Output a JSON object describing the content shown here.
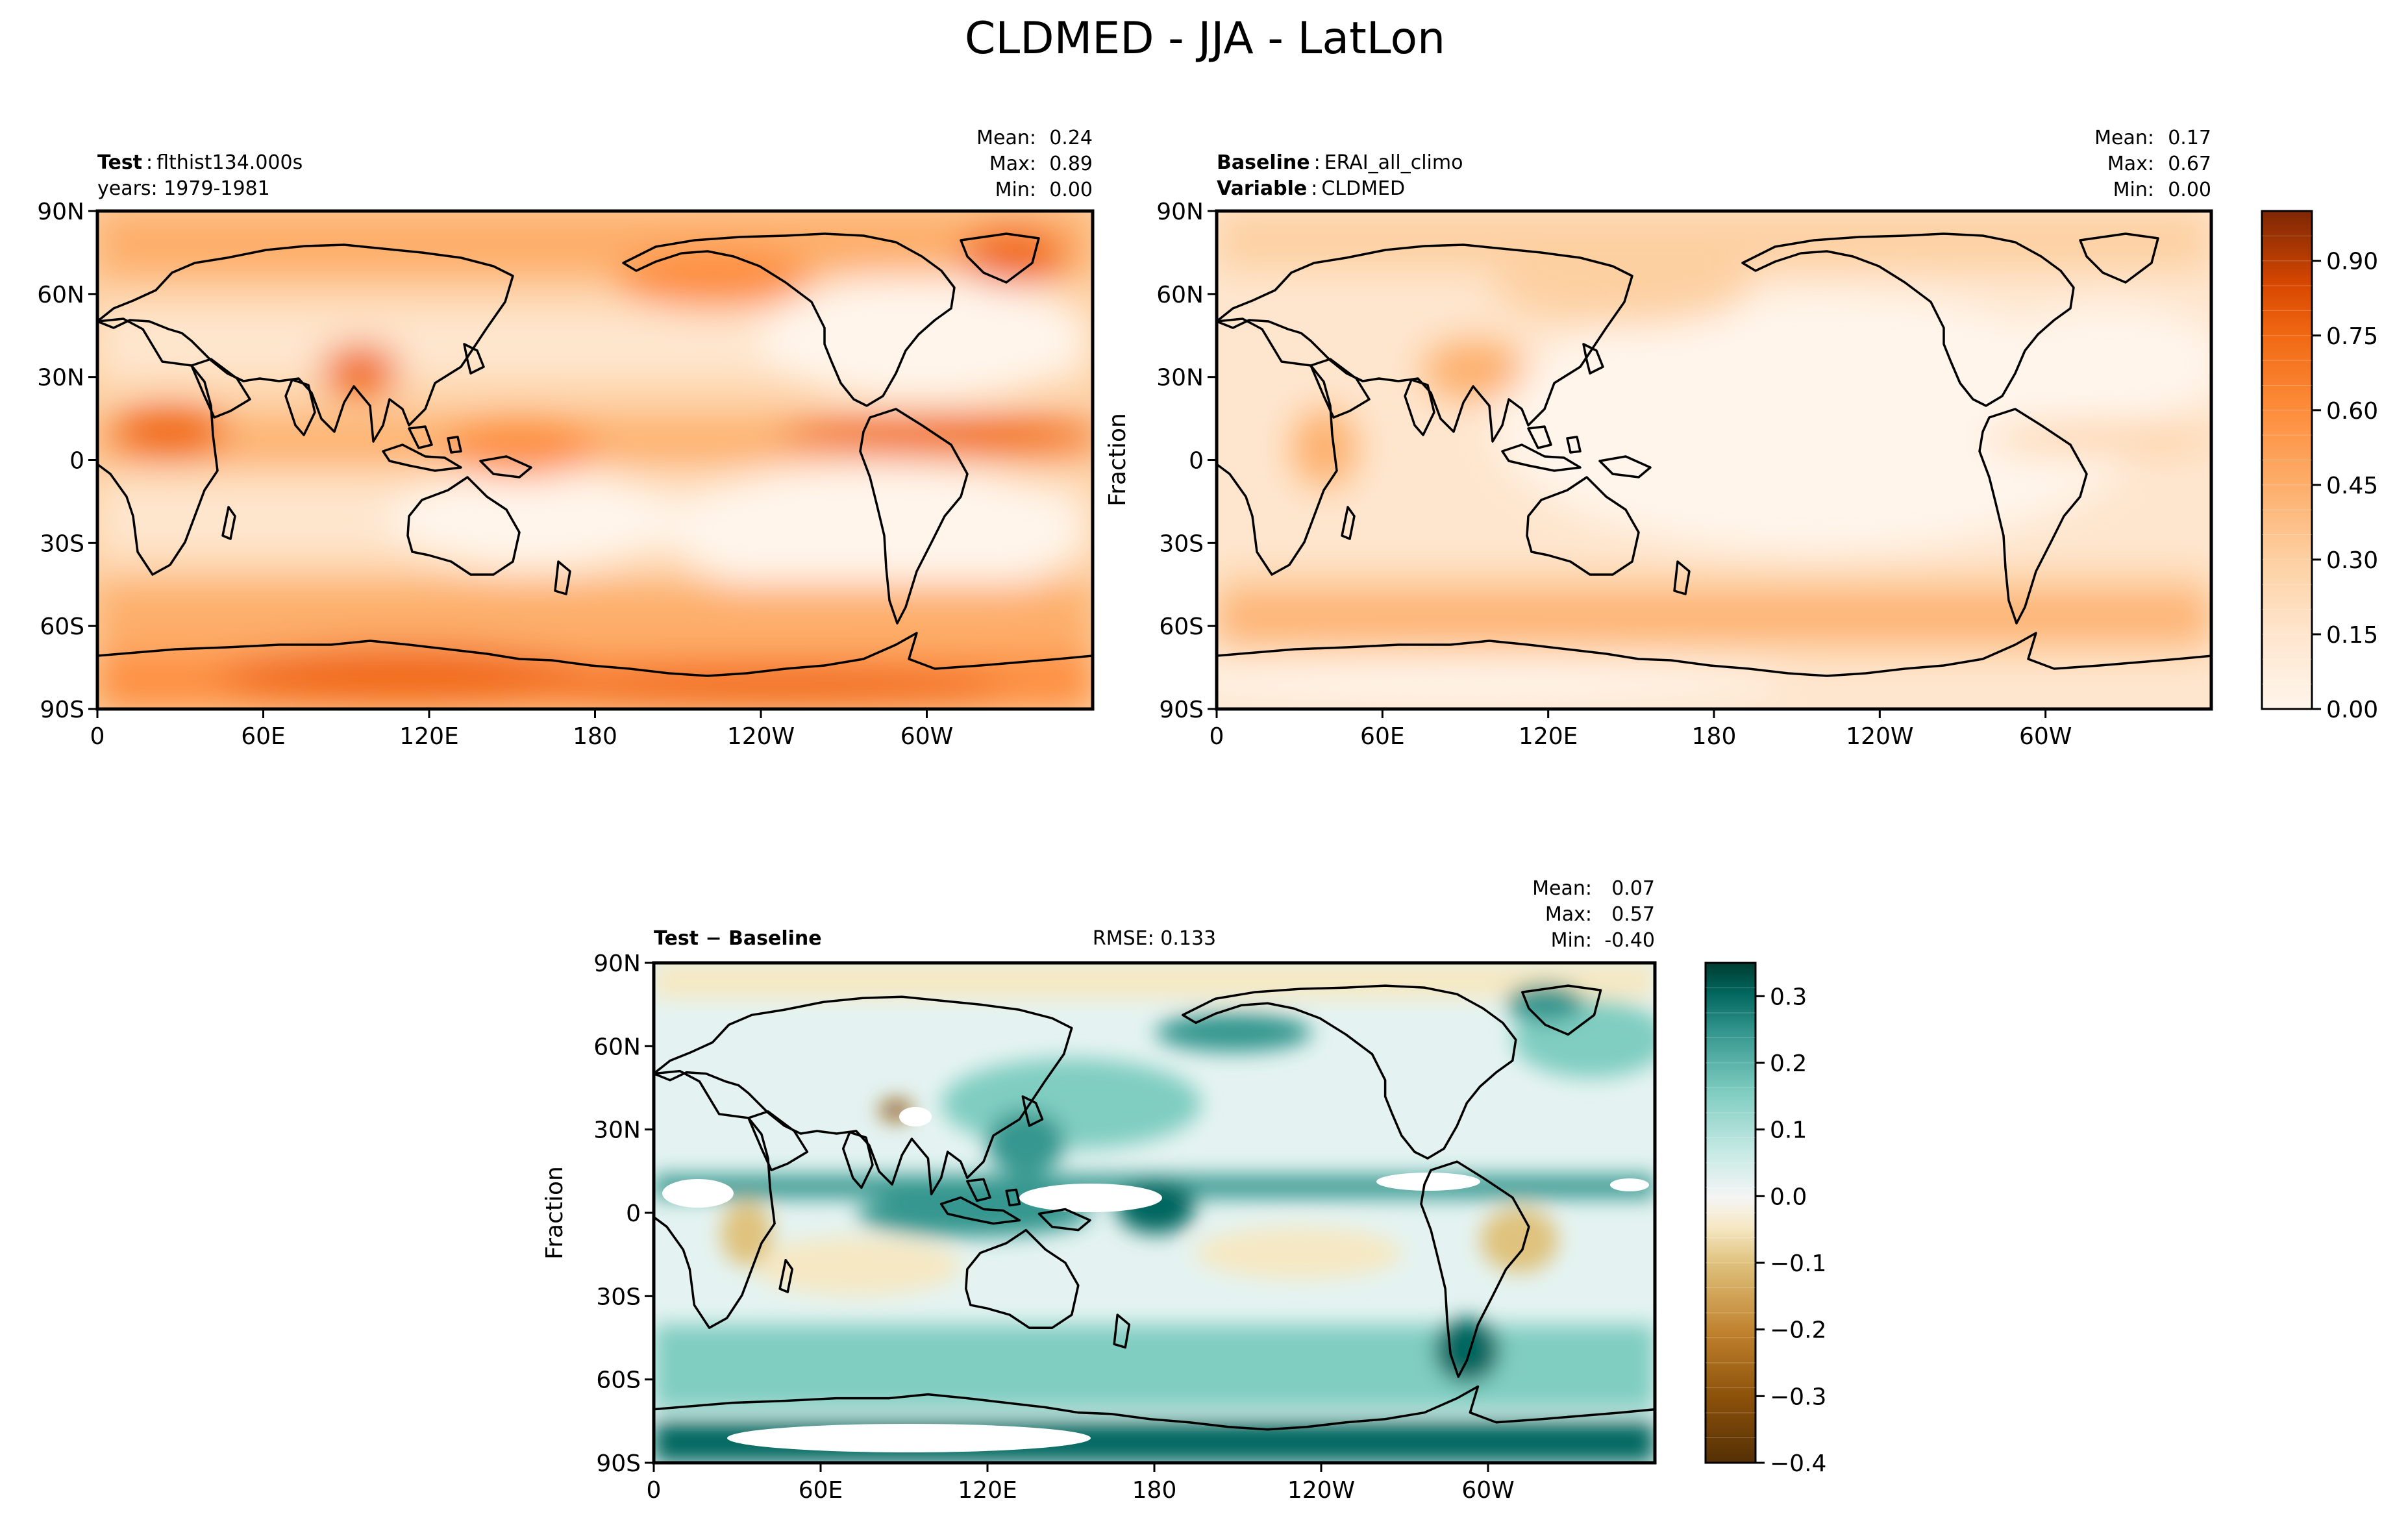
{
  "figure": {
    "title": "CLDMED - JJA - LatLon"
  },
  "axes": {
    "lat_ticks": [
      "90N",
      "60N",
      "30N",
      "0",
      "30S",
      "60S",
      "90S"
    ],
    "lon_ticks": [
      "0",
      "60E",
      "120E",
      "180",
      "120W",
      "60W"
    ]
  },
  "panels": {
    "test": {
      "label_bold": "Test",
      "label_value": "flthist134.000s",
      "line2": "years: 1979-1981",
      "stats": {
        "mean_label": "Mean:",
        "mean": "0.24",
        "max_label": "Max:",
        "max": "0.89",
        "min_label": "Min:",
        "min": "0.00"
      }
    },
    "baseline": {
      "label_bold": "Baseline",
      "label_value": "ERAI_all_climo",
      "line2_bold": "Variable",
      "line2_value": "CLDMED",
      "ylabel": "Fraction",
      "stats": {
        "mean_label": "Mean:",
        "mean": "0.17",
        "max_label": "Max:",
        "max": "0.67",
        "min_label": "Min:",
        "min": "0.00"
      }
    },
    "diff": {
      "label_bold": "Test − Baseline",
      "rmse": "RMSE: 0.133",
      "ylabel": "Fraction",
      "stats": {
        "mean_label": "Mean:",
        "mean": "0.07",
        "max_label": "Max:",
        "max": "0.57",
        "min_label": "Min:",
        "min": "-0.40"
      }
    }
  },
  "colorbars": {
    "seq": {
      "ticks": [
        "0.00",
        "0.15",
        "0.30",
        "0.45",
        "0.60",
        "0.75",
        "0.90"
      ],
      "range": [
        0,
        1
      ],
      "colors": [
        "#fff5eb",
        "#fee6ce",
        "#fdd0a2",
        "#fdae6b",
        "#fd8d3c",
        "#f16913",
        "#d94801",
        "#a63603",
        "#7f2704"
      ]
    },
    "div": {
      "ticks": [
        "−0.4",
        "−0.3",
        "−0.2",
        "−0.1",
        "0.0",
        "0.1",
        "0.2",
        "0.3"
      ],
      "range": [
        -0.4,
        0.35
      ],
      "colors": [
        "#543005",
        "#8c510a",
        "#bf812d",
        "#dfc27d",
        "#f6e8c3",
        "#f5f5f5",
        "#c7eae5",
        "#80cdc1",
        "#35978f",
        "#01665e",
        "#003c30"
      ]
    }
  }
}
